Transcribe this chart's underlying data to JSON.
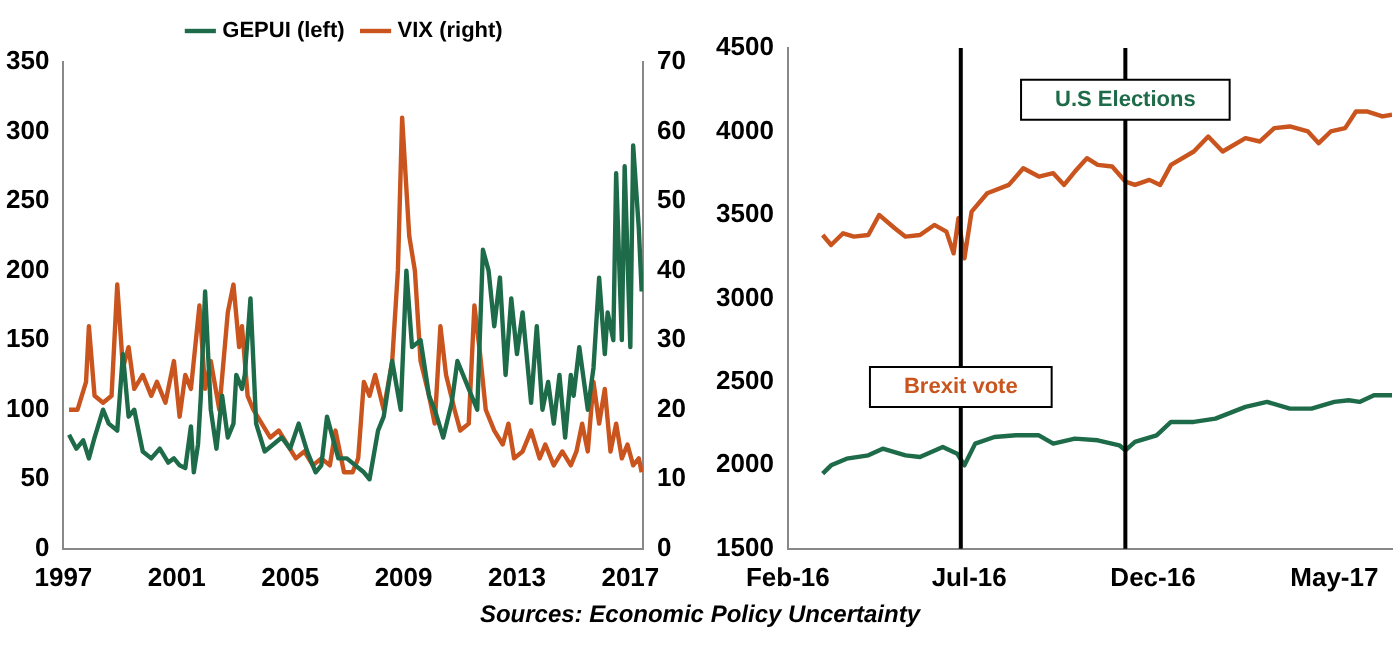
{
  "chart_data": [
    {
      "type": "line",
      "xlim": [
        1997,
        2017.45
      ],
      "xticks": [
        1997,
        2001,
        2005,
        2009,
        2013,
        2017
      ],
      "ylim": [
        0,
        350
      ],
      "yticks": [
        0,
        50,
        100,
        150,
        200,
        250,
        300,
        350
      ],
      "y2lim": [
        0,
        70
      ],
      "y2ticks": [
        0,
        10,
        20,
        30,
        40,
        50,
        60,
        70
      ],
      "grid": false,
      "legend": "top",
      "marker": "none",
      "annotations": [
        "Sources: Economic Policy Uncertainty"
      ],
      "series": [
        {
          "name": "GEPUI (left)",
          "color": "#1e6b4a",
          "x": [
            1997.2,
            1997.46,
            1997.7,
            1997.9,
            1998.1,
            1998.4,
            1998.6,
            1998.9,
            1999.1,
            1999.3,
            1999.5,
            1999.8,
            2000.1,
            2000.4,
            2000.7,
            2000.9,
            2001.1,
            2001.3,
            2001.5,
            2001.6,
            2001.75,
            2001.85,
            2002.0,
            2002.2,
            2002.4,
            2002.6,
            2002.8,
            2003.0,
            2003.1,
            2003.3,
            2003.4,
            2003.6,
            2003.8,
            2004.1,
            2004.4,
            2004.7,
            2005.0,
            2005.3,
            2005.6,
            2005.9,
            2006.1,
            2006.3,
            2006.7,
            2007.0,
            2007.3,
            2007.6,
            2007.8,
            2008.1,
            2008.3,
            2008.6,
            2008.9,
            2009.1,
            2009.3,
            2009.6,
            2009.9,
            2010.1,
            2010.4,
            2010.7,
            2010.9,
            2011.1,
            2011.3,
            2011.6,
            2011.8,
            2012.0,
            2012.2,
            2012.4,
            2012.6,
            2012.8,
            2013.0,
            2013.2,
            2013.5,
            2013.7,
            2013.9,
            2014.1,
            2014.3,
            2014.5,
            2014.7,
            2014.9,
            2015.0,
            2015.2,
            2015.5,
            2015.7,
            2015.9,
            2016.1,
            2016.2,
            2016.4,
            2016.5,
            2016.7,
            2016.8,
            2017.0,
            2017.1,
            2017.3,
            2017.4
          ],
          "values": [
            82,
            72,
            78,
            65,
            80,
            100,
            90,
            85,
            140,
            95,
            100,
            70,
            65,
            72,
            62,
            65,
            60,
            58,
            88,
            55,
            75,
            110,
            185,
            100,
            72,
            110,
            80,
            90,
            125,
            115,
            125,
            180,
            90,
            70,
            75,
            80,
            72,
            90,
            70,
            55,
            60,
            95,
            65,
            65,
            60,
            55,
            50,
            85,
            95,
            135,
            100,
            200,
            145,
            150,
            110,
            100,
            80,
            105,
            135,
            125,
            115,
            100,
            215,
            200,
            160,
            195,
            125,
            180,
            140,
            170,
            105,
            160,
            100,
            120,
            90,
            125,
            80,
            125,
            110,
            145,
            100,
            130,
            195,
            140,
            170,
            150,
            270,
            150,
            275,
            145,
            290,
            230,
            185
          ]
        },
        {
          "name": "VIX (right)",
          "color": "#c9541d",
          "axis": "y2",
          "x": [
            1997.2,
            1997.5,
            1997.8,
            1997.9,
            1998.1,
            1998.4,
            1998.7,
            1998.9,
            1999.1,
            1999.3,
            1999.5,
            1999.8,
            2000.1,
            2000.3,
            2000.6,
            2000.9,
            2001.1,
            2001.3,
            2001.5,
            2001.8,
            2002.0,
            2002.2,
            2002.5,
            2002.8,
            2003.0,
            2003.2,
            2003.3,
            2003.5,
            2003.7,
            2004.0,
            2004.3,
            2004.6,
            2004.9,
            2005.2,
            2005.5,
            2005.8,
            2006.1,
            2006.4,
            2006.6,
            2006.9,
            2007.2,
            2007.4,
            2007.6,
            2007.8,
            2008.0,
            2008.3,
            2008.6,
            2008.8,
            2008.95,
            2009.2,
            2009.4,
            2009.6,
            2009.9,
            2010.1,
            2010.3,
            2010.5,
            2010.8,
            2011.0,
            2011.3,
            2011.5,
            2011.7,
            2011.9,
            2012.2,
            2012.5,
            2012.7,
            2012.9,
            2013.2,
            2013.5,
            2013.8,
            2014.0,
            2014.3,
            2014.6,
            2014.9,
            2015.1,
            2015.3,
            2015.5,
            2015.7,
            2015.9,
            2016.1,
            2016.3,
            2016.5,
            2016.7,
            2016.9,
            2017.1,
            2017.3,
            2017.4
          ],
          "values": [
            20,
            20,
            24,
            32,
            22,
            21,
            22,
            38,
            26,
            29,
            23,
            25,
            22,
            24,
            21,
            27,
            19,
            25,
            23,
            35,
            23,
            27,
            20,
            34,
            38,
            29,
            32,
            22,
            20,
            18,
            16,
            17,
            15,
            13,
            14,
            12,
            13,
            12,
            17,
            11,
            11,
            13,
            24,
            22,
            25,
            20,
            27,
            40,
            62,
            45,
            40,
            27,
            22,
            18,
            32,
            25,
            20,
            17,
            18,
            35,
            28,
            20,
            17,
            15,
            18,
            13,
            14,
            17,
            13,
            15,
            12,
            14,
            12,
            14,
            18,
            14,
            24,
            18,
            23,
            14,
            18,
            13,
            15,
            12,
            13,
            11
          ]
        }
      ]
    },
    {
      "type": "line",
      "xlim": [
        "2016-02-01",
        "2017-06-18"
      ],
      "xticks": [
        {
          "value": "2016-02-01",
          "label": "Feb-16"
        },
        {
          "value": "2016-07-01",
          "label": "Jul-16"
        },
        {
          "value": "2016-12-01",
          "label": "Dec-16"
        },
        {
          "value": "2017-05-01",
          "label": "May-17"
        }
      ],
      "ylim": [
        1500,
        4500
      ],
      "yticks": [
        1500,
        2000,
        2500,
        3000,
        3500,
        4000,
        4500
      ],
      "grid": false,
      "marker": "none",
      "ref_lines": [
        {
          "axis": "x",
          "value": "2016-06-24",
          "color": "#000000"
        },
        {
          "axis": "x",
          "value": "2016-11-08",
          "color": "#000000"
        }
      ],
      "annotations": [
        {
          "text": "Brexit vote",
          "x": "2016-06-24",
          "y": 2470
        },
        {
          "text": "U.S Elections",
          "x": "2016-11-08",
          "y": 4190
        }
      ],
      "series": [
        {
          "color": "#c9541d",
          "x": [
            "2016-03-01",
            "2016-03-08",
            "2016-03-18",
            "2016-03-27",
            "2016-04-08",
            "2016-04-17",
            "2016-04-30",
            "2016-05-09",
            "2016-05-21",
            "2016-06-02",
            "2016-06-12",
            "2016-06-18",
            "2016-06-22",
            "2016-06-27",
            "2016-07-03",
            "2016-07-16",
            "2016-08-03",
            "2016-08-15",
            "2016-08-28",
            "2016-09-09",
            "2016-09-18",
            "2016-09-27",
            "2016-10-07",
            "2016-10-16",
            "2016-10-28",
            "2016-11-08",
            "2016-11-16",
            "2016-11-28",
            "2016-12-07",
            "2016-12-16",
            "2017-01-04",
            "2017-01-16",
            "2017-01-28",
            "2017-02-16",
            "2017-02-28",
            "2017-03-12",
            "2017-03-25",
            "2017-04-09",
            "2017-04-18",
            "2017-04-28",
            "2017-05-10",
            "2017-05-19",
            "2017-05-28",
            "2017-06-10",
            "2017-06-18"
          ],
          "values": [
            3380,
            3320,
            3390,
            3370,
            3380,
            3500,
            3420,
            3370,
            3380,
            3440,
            3400,
            3270,
            3480,
            3240,
            3520,
            3630,
            3680,
            3780,
            3730,
            3750,
            3680,
            3760,
            3840,
            3800,
            3790,
            3700,
            3680,
            3710,
            3680,
            3800,
            3880,
            3970,
            3880,
            3960,
            3940,
            4020,
            4030,
            4000,
            3930,
            4000,
            4020,
            4120,
            4120,
            4090,
            4100
          ]
        },
        {
          "color": "#1e6b4a",
          "x": [
            "2016-03-01",
            "2016-03-08",
            "2016-03-21",
            "2016-04-08",
            "2016-04-20",
            "2016-05-09",
            "2016-05-21",
            "2016-06-09",
            "2016-06-21",
            "2016-06-27",
            "2016-07-06",
            "2016-07-22",
            "2016-08-09",
            "2016-08-28",
            "2016-09-09",
            "2016-09-27",
            "2016-10-16",
            "2016-11-03",
            "2016-11-08",
            "2016-11-16",
            "2016-12-04",
            "2016-12-16",
            "2017-01-04",
            "2017-01-22",
            "2017-02-16",
            "2017-03-06",
            "2017-03-25",
            "2017-04-12",
            "2017-05-01",
            "2017-05-13",
            "2017-05-22",
            "2017-06-03",
            "2017-06-18"
          ],
          "values": [
            1950,
            2000,
            2040,
            2060,
            2100,
            2060,
            2050,
            2110,
            2070,
            2000,
            2130,
            2170,
            2180,
            2180,
            2130,
            2160,
            2150,
            2120,
            2090,
            2140,
            2180,
            2260,
            2260,
            2280,
            2350,
            2380,
            2340,
            2340,
            2380,
            2390,
            2380,
            2420,
            2420
          ]
        }
      ]
    }
  ]
}
